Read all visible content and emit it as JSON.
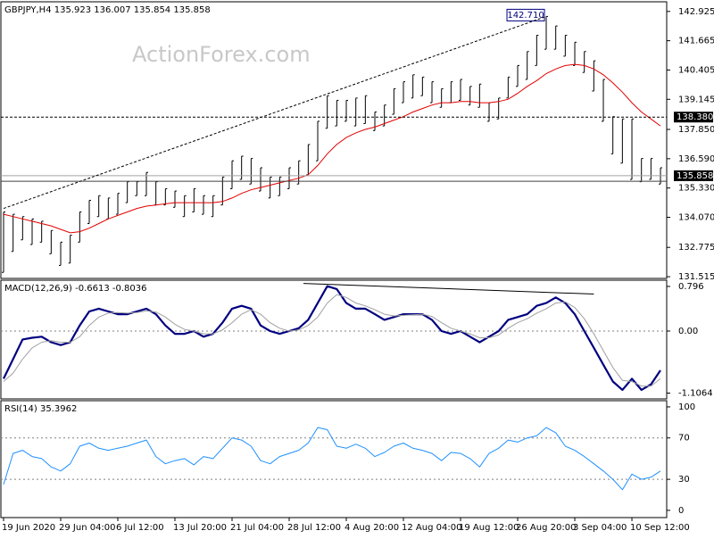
{
  "chart_data": [
    {
      "type": "ohlc",
      "title": "GBPJPY,H4 135.923 136.007 135.854 135.858",
      "watermark": "ActionForex.com",
      "bar_color": "#000000",
      "high": [
        134.3,
        134.2,
        134.1,
        134.0,
        133.9,
        133.5,
        133.0,
        133.3,
        134.3,
        134.8,
        135.0,
        134.9,
        135.1,
        135.6,
        135.6,
        136.0,
        135.6,
        135.3,
        135.2,
        135.0,
        135.3,
        135.0,
        135.0,
        135.8,
        136.5,
        136.7,
        136.6,
        136.2,
        135.8,
        135.8,
        136.2,
        136.5,
        137.2,
        138.2,
        139.3,
        139.1,
        139.1,
        139.2,
        139.3,
        138.6,
        138.9,
        139.6,
        139.9,
        140.2,
        140.1,
        139.9,
        139.6,
        139.9,
        140.0,
        139.7,
        139.8,
        139.0,
        139.2,
        140.1,
        140.6,
        141.2,
        141.9,
        142.71,
        142.3,
        141.9,
        141.6,
        141.2,
        140.8,
        140.0,
        138.4,
        138.3,
        138.3,
        136.6,
        136.6,
        136.2
      ],
      "low": [
        131.7,
        132.6,
        133.1,
        132.9,
        133.0,
        132.5,
        132.0,
        132.1,
        133.0,
        133.8,
        134.1,
        134.0,
        134.2,
        134.7,
        135.0,
        135.0,
        134.6,
        134.6,
        134.5,
        134.1,
        134.3,
        134.2,
        134.1,
        134.6,
        135.3,
        135.7,
        135.5,
        135.2,
        134.9,
        135.0,
        135.3,
        135.5,
        135.9,
        136.5,
        137.9,
        138.0,
        138.2,
        138.0,
        138.1,
        137.8,
        138.0,
        138.5,
        139.0,
        139.2,
        139.3,
        139.0,
        138.8,
        139.0,
        139.1,
        138.9,
        138.8,
        138.2,
        138.3,
        139.2,
        139.7,
        140.0,
        140.6,
        141.3,
        141.3,
        141.0,
        140.6,
        140.3,
        139.5,
        138.2,
        136.8,
        136.4,
        135.7,
        135.6,
        135.7,
        135.5
      ],
      "ma": {
        "color": "#e00000",
        "values": [
          134.2,
          134.1,
          134.0,
          133.9,
          133.8,
          133.7,
          133.55,
          133.4,
          133.45,
          133.6,
          133.8,
          134.0,
          134.15,
          134.3,
          134.45,
          134.55,
          134.6,
          134.65,
          134.7,
          134.7,
          134.7,
          134.7,
          134.7,
          134.75,
          134.9,
          135.1,
          135.25,
          135.35,
          135.45,
          135.55,
          135.65,
          135.75,
          135.9,
          136.3,
          136.8,
          137.2,
          137.5,
          137.7,
          137.85,
          137.95,
          138.1,
          138.25,
          138.4,
          138.6,
          138.75,
          138.9,
          139.0,
          139.0,
          139.05,
          139.05,
          139.0,
          139.0,
          139.05,
          139.15,
          139.4,
          139.7,
          139.95,
          140.25,
          140.45,
          140.6,
          140.65,
          140.6,
          140.45,
          140.2,
          139.85,
          139.45,
          139.0,
          138.6,
          138.3,
          138.0
        ]
      },
      "ylim": [
        131.44,
        143.34
      ],
      "yticks": [
        142.925,
        141.665,
        140.405,
        139.145,
        {
          "value": 137.85,
          "label": "137.850"
        },
        {
          "value": 136.59,
          "label": "136.590"
        },
        {
          "value": 135.33,
          "label": "135.330"
        },
        {
          "value": 134.07,
          "label": "134.070"
        },
        132.775,
        131.515
      ],
      "hlines": [
        {
          "value": 138.38,
          "label": "138.380",
          "style": "dashed",
          "color": "#000000"
        },
        {
          "value": 135.858,
          "label": "135.858",
          "style": "solid",
          "color": "#a0a0a0"
        },
        {
          "value": 135.62,
          "style": "solid",
          "color": "#404040"
        }
      ],
      "trendline": {
        "from": [
          0,
          134.45
        ],
        "to": [
          57,
          142.71
        ],
        "color": "#000000"
      },
      "peak": {
        "index": 57,
        "value": 142.71,
        "label": "142.710"
      }
    },
    {
      "type": "macd",
      "title": "MACD(12,26,9) -0.6613 -0.8036",
      "series": [
        {
          "color": "#000080",
          "width": 2.2,
          "values": [
            -0.85,
            -0.5,
            -0.15,
            -0.12,
            -0.1,
            -0.2,
            -0.25,
            -0.2,
            0.1,
            0.35,
            0.4,
            0.35,
            0.3,
            0.3,
            0.35,
            0.4,
            0.3,
            0.1,
            -0.05,
            -0.05,
            0.0,
            -0.1,
            -0.05,
            0.15,
            0.4,
            0.45,
            0.4,
            0.1,
            0.0,
            -0.05,
            0.0,
            0.05,
            0.2,
            0.5,
            0.8,
            0.75,
            0.5,
            0.4,
            0.4,
            0.3,
            0.2,
            0.25,
            0.3,
            0.3,
            0.3,
            0.2,
            0.0,
            -0.05,
            0.0,
            -0.1,
            -0.2,
            -0.1,
            0.0,
            0.2,
            0.25,
            0.3,
            0.45,
            0.5,
            0.6,
            0.5,
            0.3,
            0.0,
            -0.3,
            -0.6,
            -0.9,
            -1.05,
            -0.85,
            -1.05,
            -0.95,
            -0.7
          ]
        },
        {
          "color": "#a0a0a0",
          "width": 1,
          "values": [
            -0.9,
            -0.75,
            -0.5,
            -0.3,
            -0.2,
            -0.17,
            -0.2,
            -0.2,
            -0.1,
            0.1,
            0.25,
            0.32,
            0.33,
            0.32,
            0.33,
            0.36,
            0.34,
            0.25,
            0.12,
            0.03,
            0.0,
            -0.05,
            -0.05,
            0.02,
            0.15,
            0.3,
            0.38,
            0.3,
            0.15,
            0.05,
            0.0,
            0.02,
            0.1,
            0.25,
            0.5,
            0.65,
            0.6,
            0.5,
            0.45,
            0.38,
            0.3,
            0.27,
            0.28,
            0.29,
            0.3,
            0.26,
            0.15,
            0.05,
            0.0,
            -0.05,
            -0.12,
            -0.12,
            -0.07,
            0.05,
            0.15,
            0.22,
            0.32,
            0.4,
            0.5,
            0.52,
            0.42,
            0.22,
            -0.05,
            -0.35,
            -0.65,
            -0.88,
            -0.9,
            -0.98,
            -0.98,
            -0.85
          ]
        }
      ],
      "ylim": [
        -1.21,
        0.907
      ],
      "yticks": [
        0.796,
        {
          "value": 0,
          "label": "0.00"
        },
        -1.1064
      ],
      "levels": [
        0
      ],
      "trendline": {
        "from": [
          31.5,
          0.85
        ],
        "to": [
          62,
          0.66
        ],
        "color": "#000000"
      }
    },
    {
      "type": "rsi",
      "title": "RSI(14) 35.3962",
      "series": [
        {
          "color": "#1e90ff",
          "width": 1,
          "values": [
            25,
            55,
            58,
            52,
            50,
            42,
            38,
            45,
            62,
            65,
            60,
            58,
            60,
            62,
            65,
            68,
            52,
            45,
            48,
            50,
            44,
            52,
            50,
            60,
            70,
            68,
            62,
            48,
            45,
            52,
            55,
            58,
            65,
            80,
            78,
            62,
            60,
            64,
            60,
            52,
            56,
            62,
            65,
            60,
            58,
            55,
            48,
            56,
            55,
            50,
            42,
            55,
            60,
            68,
            66,
            70,
            72,
            80,
            75,
            62,
            58,
            52,
            45,
            38,
            30,
            20,
            35,
            30,
            32,
            38
          ]
        }
      ],
      "ylim": [
        -7,
        106
      ],
      "yticks": [
        100,
        70,
        30,
        0
      ],
      "levels": [
        70,
        30
      ],
      "categories": [
        "19 Jun 2020",
        null,
        null,
        null,
        null,
        null,
        "29 Jun 04:00",
        null,
        null,
        null,
        null,
        null,
        "6 Jul 12:00",
        null,
        null,
        null,
        null,
        null,
        "13 Jul 20:00",
        null,
        null,
        null,
        null,
        null,
        "21 Jul 04:00",
        null,
        null,
        null,
        null,
        null,
        "28 Jul 12:00",
        null,
        null,
        null,
        null,
        null,
        "4 Aug 20:00",
        null,
        null,
        null,
        null,
        null,
        "12 Aug 04:00",
        null,
        null,
        null,
        null,
        null,
        "19 Aug 12:00",
        null,
        null,
        null,
        null,
        null,
        "26 Aug 20:00",
        null,
        null,
        null,
        null,
        null,
        "3 Sep 04:00",
        null,
        null,
        null,
        null,
        null,
        "10 Sep 12:00",
        null,
        null,
        null
      ]
    }
  ]
}
